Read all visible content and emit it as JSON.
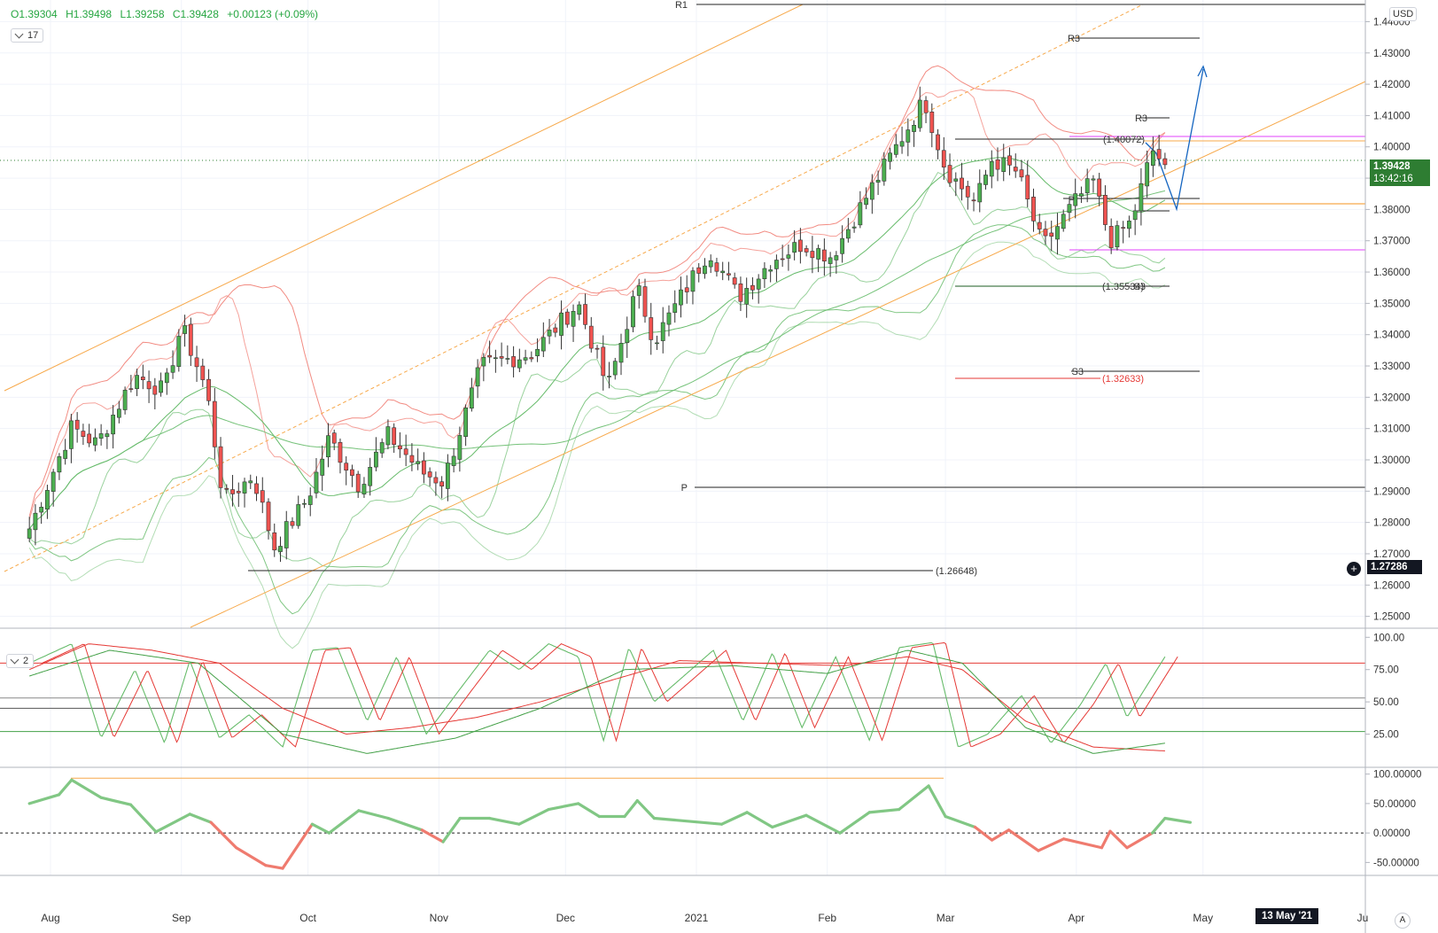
{
  "ohlc": {
    "open": "O1.39304",
    "high": "H1.39498",
    "low": "L1.39258",
    "close": "C1.39428",
    "change": "+0.00123 (+0.09%)"
  },
  "indicator_badges": {
    "main": "17",
    "stoch": "2"
  },
  "currency": "USD",
  "last_price": "1.39428",
  "countdown": "13:42:16",
  "crosshair_price": "1.27286",
  "crosshair_date": "13 May '21",
  "auto_button": "A",
  "colors": {
    "up": "#4caf50",
    "down": "#ef5350",
    "trend": "#f7a94b",
    "bb_red": "#f28b82",
    "bb_green": "#81c784",
    "magenta": "#e040fb",
    "blue_path": "#1565c0",
    "price_tag": "#2e7d32"
  },
  "chart_data": [
    {
      "type": "candlestick",
      "title": "",
      "x_ticks": [
        "Aug",
        "Sep",
        "Oct",
        "Nov",
        "Dec",
        "2021",
        "Feb",
        "Mar",
        "Apr",
        "May",
        "13 May '21",
        "Ju"
      ],
      "y_ticks": [
        "1.25000",
        "1.26000",
        "1.27000",
        "1.28000",
        "1.29000",
        "1.30000",
        "1.31000",
        "1.32000",
        "1.33000",
        "1.34000",
        "1.35000",
        "1.36000",
        "1.37000",
        "1.38000",
        "1.39000",
        "1.40000",
        "1.41000",
        "1.42000",
        "1.43000",
        "1.44000"
      ],
      "ylim": [
        1.2465,
        1.4455
      ],
      "annotations": {
        "pivot_labels": [
          "R1",
          "P",
          "R3",
          "R3",
          "P",
          "S3",
          "S3"
        ],
        "price_labels": [
          "(1.40072)",
          "(1.35534)",
          "(1.32633)",
          "(1.26648)"
        ]
      },
      "anchors": [
        [
          "2020-07-27",
          1.278
        ],
        [
          "2020-08-06",
          1.3105
        ],
        [
          "2020-08-12",
          1.305
        ],
        [
          "2020-08-21",
          1.327
        ],
        [
          "2020-08-28",
          1.322
        ],
        [
          "2020-09-01",
          1.343
        ],
        [
          "2020-09-07",
          1.322
        ],
        [
          "2020-09-11",
          1.287
        ],
        [
          "2020-09-18",
          1.295
        ],
        [
          "2020-09-23",
          1.272
        ],
        [
          "2020-10-01",
          1.288
        ],
        [
          "2020-10-06",
          1.307
        ],
        [
          "2020-10-13",
          1.292
        ],
        [
          "2020-10-20",
          1.308
        ],
        [
          "2020-10-28",
          1.296
        ],
        [
          "2020-11-02",
          1.293
        ],
        [
          "2020-11-11",
          1.33
        ],
        [
          "2020-11-23",
          1.334
        ],
        [
          "2020-12-04",
          1.35
        ],
        [
          "2020-12-11",
          1.323
        ],
        [
          "2020-12-18",
          1.355
        ],
        [
          "2020-12-22",
          1.338
        ],
        [
          "2021-01-04",
          1.367
        ],
        [
          "2021-01-11",
          1.352
        ],
        [
          "2021-01-19",
          1.364
        ],
        [
          "2021-01-26",
          1.369
        ],
        [
          "2021-02-02",
          1.365
        ],
        [
          "2021-02-12",
          1.388
        ],
        [
          "2021-02-24",
          1.415
        ],
        [
          "2021-03-01",
          1.393
        ],
        [
          "2021-03-08",
          1.382
        ],
        [
          "2021-03-12",
          1.396
        ],
        [
          "2021-03-18",
          1.392
        ],
        [
          "2021-03-24",
          1.368
        ],
        [
          "2021-04-01",
          1.383
        ],
        [
          "2021-04-05",
          1.389
        ],
        [
          "2021-04-09",
          1.37
        ],
        [
          "2021-04-14",
          1.376
        ],
        [
          "2021-04-19",
          1.399
        ],
        [
          "2021-04-22",
          1.3943
        ]
      ]
    },
    {
      "type": "line",
      "title": "",
      "y_ticks": [
        "25.00",
        "50.00",
        "75.00",
        "100.00"
      ],
      "ylim": [
        0,
        105
      ],
      "levels": [
        80,
        45,
        27
      ],
      "fast_anchors": [
        [
          "2020-07-27",
          80
        ],
        [
          "2020-08-06",
          95
        ],
        [
          "2020-08-13",
          22
        ],
        [
          "2020-08-21",
          75
        ],
        [
          "2020-08-28",
          18
        ],
        [
          "2020-09-03",
          82
        ],
        [
          "2020-09-10",
          22
        ],
        [
          "2020-09-17",
          40
        ],
        [
          "2020-09-25",
          15
        ],
        [
          "2020-10-02",
          90
        ],
        [
          "2020-10-08",
          92
        ],
        [
          "2020-10-15",
          35
        ],
        [
          "2020-10-22",
          85
        ],
        [
          "2020-10-29",
          25
        ],
        [
          "2020-11-06",
          60
        ],
        [
          "2020-11-13",
          90
        ],
        [
          "2020-11-20",
          75
        ],
        [
          "2020-11-27",
          95
        ],
        [
          "2020-12-04",
          85
        ],
        [
          "2020-12-10",
          20
        ],
        [
          "2020-12-16",
          92
        ],
        [
          "2020-12-22",
          50
        ],
        [
          "2021-01-05",
          90
        ],
        [
          "2021-01-12",
          35
        ],
        [
          "2021-01-19",
          88
        ],
        [
          "2021-01-26",
          30
        ],
        [
          "2021-02-03",
          85
        ],
        [
          "2021-02-11",
          20
        ],
        [
          "2021-02-18",
          92
        ],
        [
          "2021-02-26",
          96
        ],
        [
          "2021-03-04",
          15
        ],
        [
          "2021-03-11",
          25
        ],
        [
          "2021-03-19",
          55
        ],
        [
          "2021-03-26",
          18
        ],
        [
          "2021-04-02",
          48
        ],
        [
          "2021-04-08",
          80
        ],
        [
          "2021-04-13",
          38
        ],
        [
          "2021-04-22",
          85
        ]
      ],
      "slow_anchors": [
        [
          "2020-07-27",
          75
        ],
        [
          "2020-08-10",
          95
        ],
        [
          "2020-08-25",
          90
        ],
        [
          "2020-09-10",
          80
        ],
        [
          "2020-09-25",
          45
        ],
        [
          "2020-10-10",
          25
        ],
        [
          "2020-10-25",
          30
        ],
        [
          "2020-11-10",
          38
        ],
        [
          "2020-11-25",
          50
        ],
        [
          "2020-12-10",
          65
        ],
        [
          "2020-12-28",
          82
        ],
        [
          "2021-01-15",
          80
        ],
        [
          "2021-02-05",
          78
        ],
        [
          "2021-02-20",
          85
        ],
        [
          "2021-03-05",
          75
        ],
        [
          "2021-03-20",
          35
        ],
        [
          "2021-04-05",
          15
        ],
        [
          "2021-04-22",
          12
        ]
      ],
      "third_anchors": [
        [
          "2020-07-27",
          70
        ],
        [
          "2020-08-15",
          90
        ],
        [
          "2020-09-05",
          80
        ],
        [
          "2020-09-25",
          25
        ],
        [
          "2020-10-15",
          10
        ],
        [
          "2020-11-05",
          22
        ],
        [
          "2020-11-25",
          45
        ],
        [
          "2020-12-15",
          75
        ],
        [
          "2021-01-10",
          78
        ],
        [
          "2021-02-01",
          72
        ],
        [
          "2021-02-20",
          90
        ],
        [
          "2021-03-05",
          80
        ],
        [
          "2021-03-20",
          30
        ],
        [
          "2021-04-05",
          10
        ],
        [
          "2021-04-22",
          18
        ]
      ]
    },
    {
      "type": "line",
      "title": "",
      "y_ticks": [
        "-50.00000",
        "0.00000",
        "50.00000",
        "100.00000"
      ],
      "ylim": [
        -72,
        110
      ],
      "anchors": [
        [
          "2020-07-27",
          50
        ],
        [
          "2020-08-03",
          65
        ],
        [
          "2020-08-06",
          90
        ],
        [
          "2020-08-13",
          60
        ],
        [
          "2020-08-20",
          48
        ],
        [
          "2020-08-26",
          2
        ],
        [
          "2020-09-03",
          32
        ],
        [
          "2020-09-08",
          18
        ],
        [
          "2020-09-14",
          -25
        ],
        [
          "2020-09-21",
          -55
        ],
        [
          "2020-09-25",
          -60
        ],
        [
          "2020-10-02",
          15
        ],
        [
          "2020-10-06",
          0
        ],
        [
          "2020-10-13",
          38
        ],
        [
          "2020-10-20",
          25
        ],
        [
          "2020-10-28",
          5
        ],
        [
          "2020-11-02",
          -15
        ],
        [
          "2020-11-06",
          25
        ],
        [
          "2020-11-13",
          25
        ],
        [
          "2020-11-20",
          15
        ],
        [
          "2020-11-27",
          40
        ],
        [
          "2020-12-04",
          50
        ],
        [
          "2020-12-09",
          28
        ],
        [
          "2020-12-15",
          28
        ],
        [
          "2020-12-18",
          55
        ],
        [
          "2020-12-22",
          25
        ],
        [
          "2021-01-07",
          15
        ],
        [
          "2021-01-13",
          35
        ],
        [
          "2021-01-19",
          10
        ],
        [
          "2021-01-27",
          30
        ],
        [
          "2021-02-04",
          0
        ],
        [
          "2021-02-11",
          35
        ],
        [
          "2021-02-18",
          40
        ],
        [
          "2021-02-25",
          80
        ],
        [
          "2021-03-01",
          28
        ],
        [
          "2021-03-08",
          10
        ],
        [
          "2021-03-12",
          -12
        ],
        [
          "2021-03-16",
          5
        ],
        [
          "2021-03-23",
          -30
        ],
        [
          "2021-03-29",
          -10
        ],
        [
          "2021-04-07",
          -25
        ],
        [
          "2021-04-09",
          3
        ],
        [
          "2021-04-13",
          -25
        ],
        [
          "2021-04-19",
          0
        ],
        [
          "2021-04-22",
          25
        ],
        [
          "2021-04-28",
          18
        ]
      ]
    }
  ]
}
